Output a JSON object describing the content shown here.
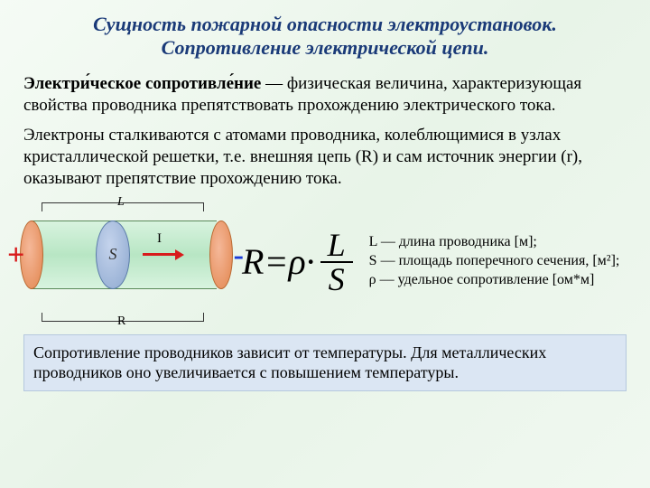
{
  "title_line1": "Сущность пожарной опасности электроустановок.",
  "title_line2": "Сопротивление электрической цепи.",
  "term": "Электри́ческое сопротивле́ние",
  "para1_tail": " — физическая величина, характеризующая свойства проводника препятствовать прохождению электрического тока.",
  "para2": "Электроны сталкиваются с атомами проводника, колеблющимися в узлах кристаллической решетки, т.е. внешняя цепь (R) и сам источник энергии (r), оказывают препятствие прохождению тока.",
  "diagram": {
    "L": "L",
    "S": "S",
    "I": "I",
    "R": "R",
    "plus": "+",
    "minus": "-"
  },
  "formula": {
    "R": "R",
    "eq": " = ",
    "rho": "ρ",
    "dot": " · ",
    "num": "L",
    "den": "S"
  },
  "legend": {
    "l1": "L — длина проводника [м];",
    "l2": "S — площадь поперечного сечения, [м²];",
    "l3": "ρ — удельное сопротивление [ом*м]"
  },
  "footer": "Сопротивление проводников зависит от температуры. Для металлических проводников оно увеличивается с повышением температуры.",
  "colors": {
    "title": "#1a3a78",
    "plus": "#d81b1b",
    "minus": "#1b3bd8",
    "footer_bg": "#dbe6f3",
    "conductor": "#b8e6c4",
    "cap": "#e2864f",
    "section": "#8da8cf"
  }
}
